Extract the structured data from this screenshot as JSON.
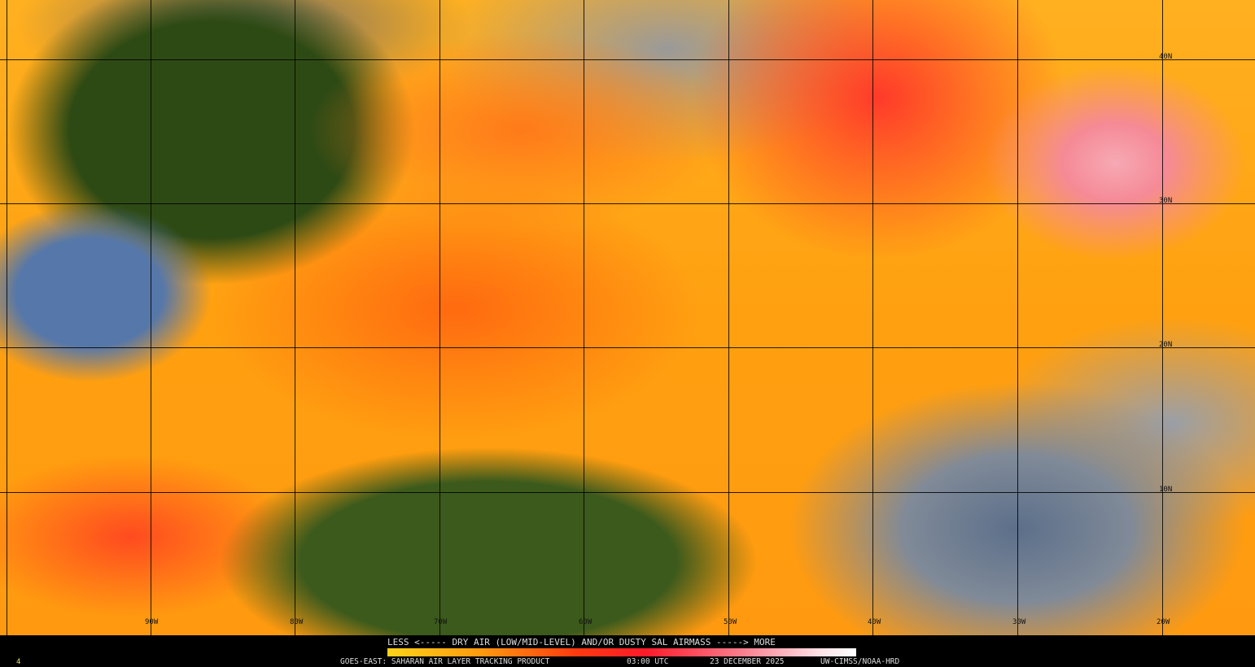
{
  "map": {
    "longitude_labels": [
      "90W",
      "80W",
      "70W",
      "60W",
      "50W",
      "40W",
      "30W",
      "20W"
    ],
    "latitude_labels": [
      "40N",
      "30N",
      "20N",
      "10N"
    ]
  },
  "legend": {
    "scale_text": "LESS <----- DRY AIR (LOW/MID-LEVEL) AND/OR DUSTY SAL AIRMASS -----> MORE",
    "colors": [
      "#ffd21a",
      "#ff9a10",
      "#ff3a10",
      "#ff1a2a",
      "#f87a8a",
      "#ffffff"
    ]
  },
  "footer": {
    "frame_number": "4",
    "product": "GOES-EAST: SAHARAN AIR LAYER TRACKING PRODUCT",
    "time": "03:00 UTC",
    "date": "23 DECEMBER 2025",
    "credit": "UW-CIMSS/NOAA-HRD"
  }
}
